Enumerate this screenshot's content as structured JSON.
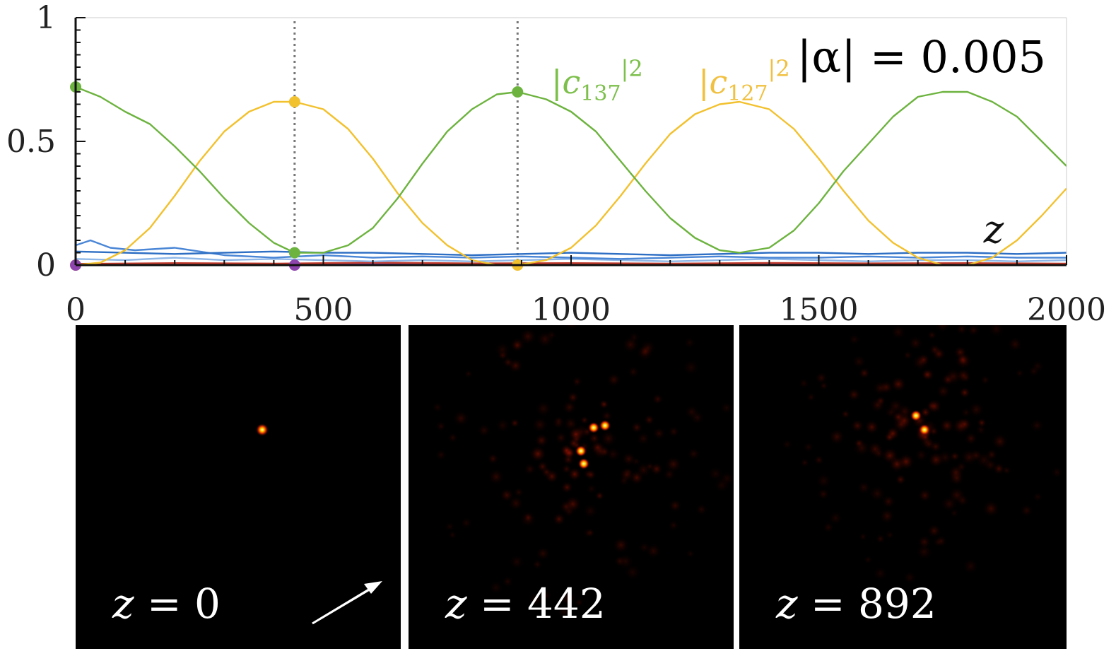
{
  "chart_data": {
    "type": "line",
    "xlim": [
      0,
      2000
    ],
    "ylim": [
      0,
      1
    ],
    "x_ticks": [
      "0",
      "500",
      "1000",
      "1500",
      "2000"
    ],
    "y_ticks": [
      "0",
      "0.5",
      "1"
    ],
    "xlabel": "z",
    "annotation": "|α| = 0.005",
    "markers_at_z": [
      0,
      442,
      892
    ],
    "series": [
      {
        "name": "|c137|²",
        "color": "#6db33f",
        "x": [
          0,
          50,
          100,
          150,
          200,
          250,
          300,
          350,
          400,
          442,
          500,
          550,
          600,
          650,
          700,
          750,
          800,
          850,
          892,
          950,
          1000,
          1050,
          1100,
          1150,
          1200,
          1250,
          1300,
          1340,
          1400,
          1450,
          1500,
          1550,
          1600,
          1650,
          1700,
          1750,
          1800,
          1850,
          1900,
          1950,
          2000
        ],
        "y": [
          0.72,
          0.68,
          0.62,
          0.57,
          0.48,
          0.38,
          0.27,
          0.17,
          0.09,
          0.05,
          0.05,
          0.08,
          0.15,
          0.27,
          0.41,
          0.54,
          0.63,
          0.69,
          0.7,
          0.67,
          0.62,
          0.54,
          0.42,
          0.3,
          0.19,
          0.11,
          0.06,
          0.05,
          0.07,
          0.14,
          0.25,
          0.38,
          0.49,
          0.6,
          0.68,
          0.7,
          0.7,
          0.66,
          0.6,
          0.5,
          0.4
        ]
      },
      {
        "name": "|c127|²",
        "color": "#f2c12e",
        "x": [
          0,
          50,
          100,
          150,
          200,
          250,
          300,
          350,
          400,
          442,
          500,
          550,
          600,
          650,
          700,
          750,
          800,
          850,
          892,
          950,
          1000,
          1050,
          1100,
          1150,
          1200,
          1250,
          1300,
          1340,
          1400,
          1450,
          1500,
          1550,
          1600,
          1650,
          1700,
          1750,
          1800,
          1850,
          1900,
          1950,
          2000
        ],
        "y": [
          0.0,
          0.01,
          0.06,
          0.15,
          0.28,
          0.42,
          0.54,
          0.62,
          0.66,
          0.66,
          0.63,
          0.55,
          0.43,
          0.29,
          0.17,
          0.08,
          0.02,
          0.0,
          0.0,
          0.02,
          0.07,
          0.16,
          0.28,
          0.41,
          0.53,
          0.61,
          0.65,
          0.66,
          0.63,
          0.55,
          0.43,
          0.3,
          0.18,
          0.09,
          0.03,
          0.0,
          0.0,
          0.03,
          0.1,
          0.2,
          0.31
        ]
      },
      {
        "name": "",
        "color": "#2e6fc4",
        "x": [
          0,
          100,
          200,
          300,
          400,
          500,
          600,
          700,
          800,
          900,
          1000,
          1100,
          1200,
          1300,
          1400,
          1500,
          1600,
          1700,
          1800,
          1900,
          2000
        ],
        "y": [
          0.055,
          0.05,
          0.045,
          0.05,
          0.055,
          0.05,
          0.05,
          0.045,
          0.04,
          0.045,
          0.05,
          0.045,
          0.04,
          0.045,
          0.05,
          0.05,
          0.045,
          0.05,
          0.05,
          0.045,
          0.05
        ]
      },
      {
        "name": "",
        "color": "#4a86d6",
        "x": [
          0,
          30,
          70,
          120,
          200,
          300,
          400,
          500,
          600,
          700,
          800,
          900,
          1000,
          1100,
          1200,
          1300,
          1400,
          1500,
          1600,
          1700,
          1800,
          1900,
          2000
        ],
        "y": [
          0.08,
          0.1,
          0.07,
          0.06,
          0.07,
          0.04,
          0.03,
          0.04,
          0.03,
          0.035,
          0.03,
          0.035,
          0.03,
          0.025,
          0.03,
          0.035,
          0.03,
          0.03,
          0.035,
          0.03,
          0.035,
          0.03,
          0.03
        ]
      },
      {
        "name": "",
        "color": "#8fb8e8",
        "x": [
          0,
          100,
          200,
          300,
          400,
          500,
          600,
          700,
          800,
          900,
          1000,
          1100,
          1200,
          1300,
          1400,
          1500,
          1600,
          1700,
          1800,
          1900,
          2000
        ],
        "y": [
          0.025,
          0.02,
          0.03,
          0.02,
          0.025,
          0.02,
          0.015,
          0.02,
          0.015,
          0.02,
          0.025,
          0.02,
          0.015,
          0.02,
          0.025,
          0.02,
          0.015,
          0.02,
          0.02,
          0.015,
          0.02
        ]
      },
      {
        "name": "",
        "color": "#c0392b",
        "x": [
          0,
          200,
          400,
          600,
          800,
          1000,
          1200,
          1400,
          1600,
          1800,
          2000
        ],
        "y": [
          0.005,
          0.008,
          0.006,
          0.01,
          0.007,
          0.008,
          0.006,
          0.009,
          0.007,
          0.008,
          0.006
        ]
      },
      {
        "name": "",
        "color": "#8e44ad",
        "x": [
          0,
          200,
          400,
          600,
          800,
          1000,
          1200,
          1400,
          1600,
          1800,
          2000
        ],
        "y": [
          0.0,
          0.003,
          0.002,
          0.004,
          0.002,
          0.003,
          0.002,
          0.004,
          0.003,
          0.002,
          0.003
        ]
      }
    ],
    "labels": [
      {
        "text_base": "|c",
        "sub": "137",
        "sup": "|2",
        "color": "#7cbf4a"
      },
      {
        "text_base": "|c",
        "sub": "127",
        "sup": "|2",
        "color": "#f0c040"
      }
    ],
    "points": [
      {
        "x": 0,
        "y": 0.72,
        "color": "#6db33f"
      },
      {
        "x": 0,
        "y": 0.0,
        "color": "#f2c12e"
      },
      {
        "x": 0,
        "y": 0.0,
        "color": "#8e44ad"
      },
      {
        "x": 442,
        "y": 0.66,
        "color": "#f2c12e"
      },
      {
        "x": 442,
        "y": 0.05,
        "color": "#6db33f"
      },
      {
        "x": 442,
        "y": 0.0,
        "color": "#8e44ad"
      },
      {
        "x": 892,
        "y": 0.7,
        "color": "#6db33f"
      },
      {
        "x": 892,
        "y": 0.0,
        "color": "#f2c12e"
      }
    ]
  },
  "panels": [
    {
      "label_var": "z",
      "label_rest": " = 0",
      "has_arrow": true
    },
    {
      "label_var": "z",
      "label_rest": " = 442",
      "has_arrow": false
    },
    {
      "label_var": "z",
      "label_rest": " = 892",
      "has_arrow": false
    }
  ]
}
